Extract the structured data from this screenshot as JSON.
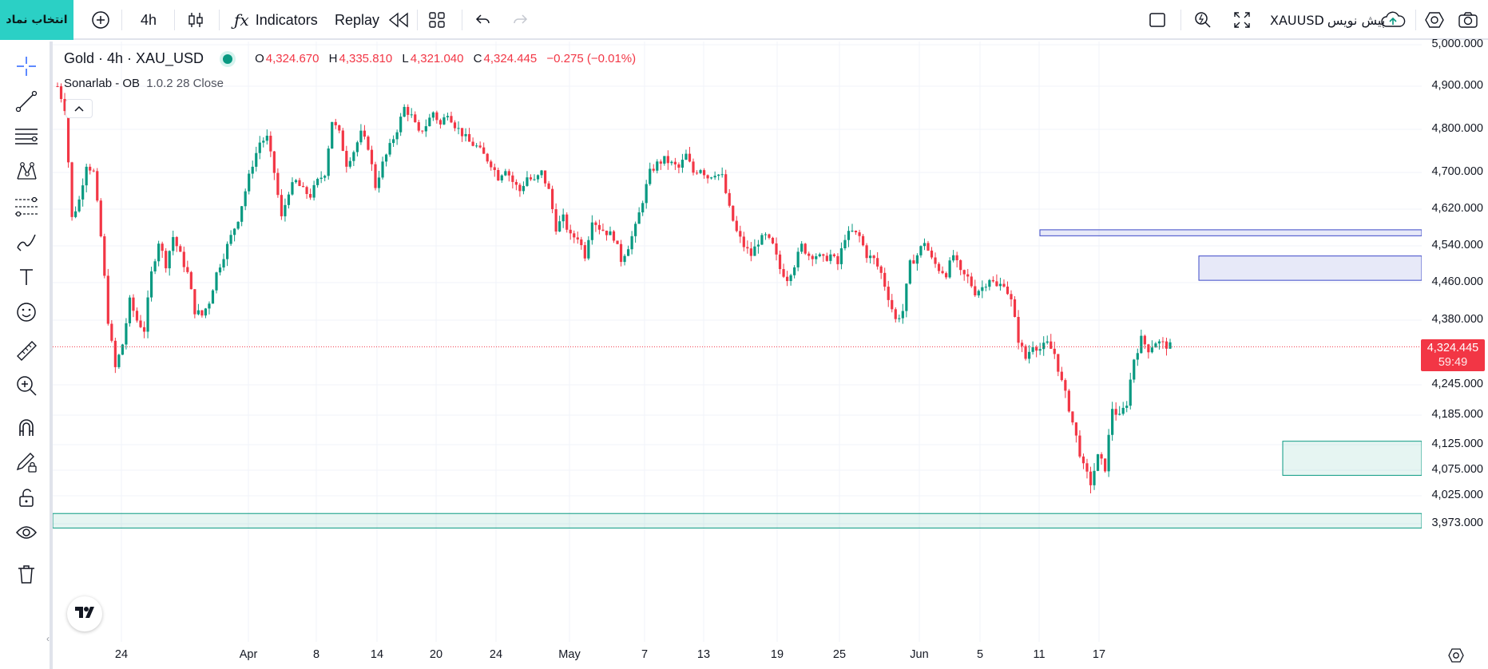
{
  "topbar": {
    "symbol_select": "انتخاب نماد",
    "interval": "4h",
    "indicators": "Indicators",
    "replay": "Replay",
    "symbol": "XAUUSD",
    "default_label": "پیش نویس"
  },
  "legend": {
    "title": "Gold · 4h · XAU_USD",
    "o_label": "O",
    "o": "4,324.670",
    "h_label": "H",
    "h": "4,335.810",
    "l_label": "L",
    "l": "4,321.040",
    "c_label": "C",
    "c": "4,324.445",
    "change": "−0.275 (−0.01%)",
    "indicator": "Sonarlab - OB",
    "indicator_params": "1.0.2 28 Close"
  },
  "price_badge": {
    "price": "4,324.445",
    "countdown": "59:49"
  },
  "colors": {
    "up": "#089981",
    "down": "#f23645",
    "bear_ob": "#3b48c8",
    "bull_ob": "#089981",
    "accent": "#2bd0c5"
  },
  "chart_data": {
    "type": "candlestick",
    "title": "Gold · 4h · XAU_USD",
    "y_axis": {
      "ticks": [
        5000,
        4900,
        4800,
        4700,
        4620,
        4540,
        4460,
        4380,
        4245,
        4185,
        4125,
        4075,
        4025,
        3973
      ],
      "tick_labels": [
        "5,000.000",
        "4,900.000",
        "4,800.000",
        "4,700.000",
        "4,620.000",
        "4,540.000",
        "4,460.000",
        "4,380.000",
        "4,245.000",
        "4,185.000",
        "4,125.000",
        "4,075.000",
        "4,025.000",
        "3,973.000"
      ],
      "position": "right"
    },
    "x_axis": {
      "tick_labels": [
        "24",
        "Apr",
        "8",
        "14",
        "20",
        "24",
        "May",
        "7",
        "13",
        "19",
        "25",
        "Jun",
        "5",
        "11",
        "17"
      ]
    },
    "last_price": 4324.445,
    "grid": true,
    "path": [
      [
        0,
        4900
      ],
      [
        2,
        4850
      ],
      [
        4,
        4600
      ],
      [
        6,
        4640
      ],
      [
        8,
        4720
      ],
      [
        10,
        4700
      ],
      [
        12,
        4560
      ],
      [
        14,
        4380
      ],
      [
        16,
        4280
      ],
      [
        18,
        4330
      ],
      [
        20,
        4420
      ],
      [
        22,
        4380
      ],
      [
        24,
        4360
      ],
      [
        26,
        4480
      ],
      [
        28,
        4550
      ],
      [
        30,
        4500
      ],
      [
        32,
        4560
      ],
      [
        34,
        4520
      ],
      [
        36,
        4480
      ],
      [
        38,
        4400
      ],
      [
        40,
        4390
      ],
      [
        42,
        4420
      ],
      [
        44,
        4480
      ],
      [
        46,
        4520
      ],
      [
        48,
        4560
      ],
      [
        50,
        4600
      ],
      [
        52,
        4660
      ],
      [
        54,
        4720
      ],
      [
        56,
        4770
      ],
      [
        58,
        4780
      ],
      [
        60,
        4700
      ],
      [
        62,
        4600
      ],
      [
        64,
        4660
      ],
      [
        66,
        4680
      ],
      [
        68,
        4660
      ],
      [
        70,
        4650
      ],
      [
        72,
        4680
      ],
      [
        74,
        4700
      ],
      [
        76,
        4820
      ],
      [
        78,
        4790
      ],
      [
        80,
        4720
      ],
      [
        82,
        4750
      ],
      [
        84,
        4790
      ],
      [
        86,
        4760
      ],
      [
        88,
        4670
      ],
      [
        90,
        4720
      ],
      [
        92,
        4760
      ],
      [
        94,
        4800
      ],
      [
        96,
        4850
      ],
      [
        98,
        4830
      ],
      [
        100,
        4790
      ],
      [
        102,
        4810
      ],
      [
        104,
        4840
      ],
      [
        106,
        4810
      ],
      [
        108,
        4840
      ],
      [
        110,
        4810
      ],
      [
        112,
        4790
      ],
      [
        114,
        4770
      ],
      [
        116,
        4760
      ],
      [
        118,
        4740
      ],
      [
        120,
        4720
      ],
      [
        122,
        4690
      ],
      [
        124,
        4710
      ],
      [
        126,
        4680
      ],
      [
        128,
        4660
      ],
      [
        130,
        4690
      ],
      [
        132,
        4680
      ],
      [
        134,
        4700
      ],
      [
        136,
        4660
      ],
      [
        138,
        4580
      ],
      [
        140,
        4600
      ],
      [
        142,
        4560
      ],
      [
        144,
        4560
      ],
      [
        146,
        4520
      ],
      [
        148,
        4600
      ],
      [
        150,
        4580
      ],
      [
        152,
        4570
      ],
      [
        154,
        4560
      ],
      [
        156,
        4510
      ],
      [
        158,
        4540
      ],
      [
        160,
        4580
      ],
      [
        162,
        4640
      ],
      [
        164,
        4700
      ],
      [
        166,
        4720
      ],
      [
        168,
        4730
      ],
      [
        170,
        4720
      ],
      [
        172,
        4710
      ],
      [
        174,
        4740
      ],
      [
        176,
        4700
      ],
      [
        178,
        4710
      ],
      [
        180,
        4690
      ],
      [
        182,
        4700
      ],
      [
        184,
        4690
      ],
      [
        186,
        4620
      ],
      [
        188,
        4570
      ],
      [
        190,
        4540
      ],
      [
        192,
        4520
      ],
      [
        194,
        4550
      ],
      [
        196,
        4560
      ],
      [
        198,
        4540
      ],
      [
        200,
        4490
      ],
      [
        202,
        4470
      ],
      [
        204,
        4500
      ],
      [
        206,
        4540
      ],
      [
        208,
        4520
      ],
      [
        210,
        4520
      ],
      [
        212,
        4510
      ],
      [
        214,
        4520
      ],
      [
        216,
        4500
      ],
      [
        218,
        4560
      ],
      [
        220,
        4570
      ],
      [
        222,
        4560
      ],
      [
        224,
        4520
      ],
      [
        226,
        4510
      ],
      [
        228,
        4480
      ],
      [
        230,
        4430
      ],
      [
        232,
        4380
      ],
      [
        234,
        4400
      ],
      [
        236,
        4500
      ],
      [
        238,
        4520
      ],
      [
        240,
        4550
      ],
      [
        242,
        4510
      ],
      [
        244,
        4490
      ],
      [
        246,
        4480
      ],
      [
        248,
        4520
      ],
      [
        250,
        4480
      ],
      [
        252,
        4470
      ],
      [
        254,
        4440
      ],
      [
        256,
        4450
      ],
      [
        258,
        4470
      ],
      [
        260,
        4450
      ],
      [
        262,
        4460
      ],
      [
        264,
        4420
      ],
      [
        266,
        4340
      ],
      [
        268,
        4300
      ],
      [
        270,
        4330
      ],
      [
        272,
        4320
      ],
      [
        274,
        4330
      ],
      [
        276,
        4310
      ],
      [
        278,
        4250
      ],
      [
        280,
        4200
      ],
      [
        282,
        4140
      ],
      [
        284,
        4080
      ],
      [
        286,
        4050
      ],
      [
        288,
        4100
      ],
      [
        290,
        4080
      ],
      [
        292,
        4200
      ],
      [
        294,
        4180
      ],
      [
        296,
        4210
      ],
      [
        298,
        4300
      ],
      [
        300,
        4340
      ],
      [
        302,
        4320
      ],
      [
        304,
        4335
      ],
      [
        306,
        4330
      ],
      [
        308,
        4325
      ]
    ],
    "zones": [
      {
        "type": "bearish_ob",
        "from": 4562,
        "to": 4575
      },
      {
        "type": "bearish_ob",
        "from": 4465,
        "to": 4518
      },
      {
        "type": "bullish_ob",
        "from": 4065,
        "to": 4132
      },
      {
        "type": "bullish_ob",
        "from": 3965,
        "to": 3992
      }
    ]
  }
}
